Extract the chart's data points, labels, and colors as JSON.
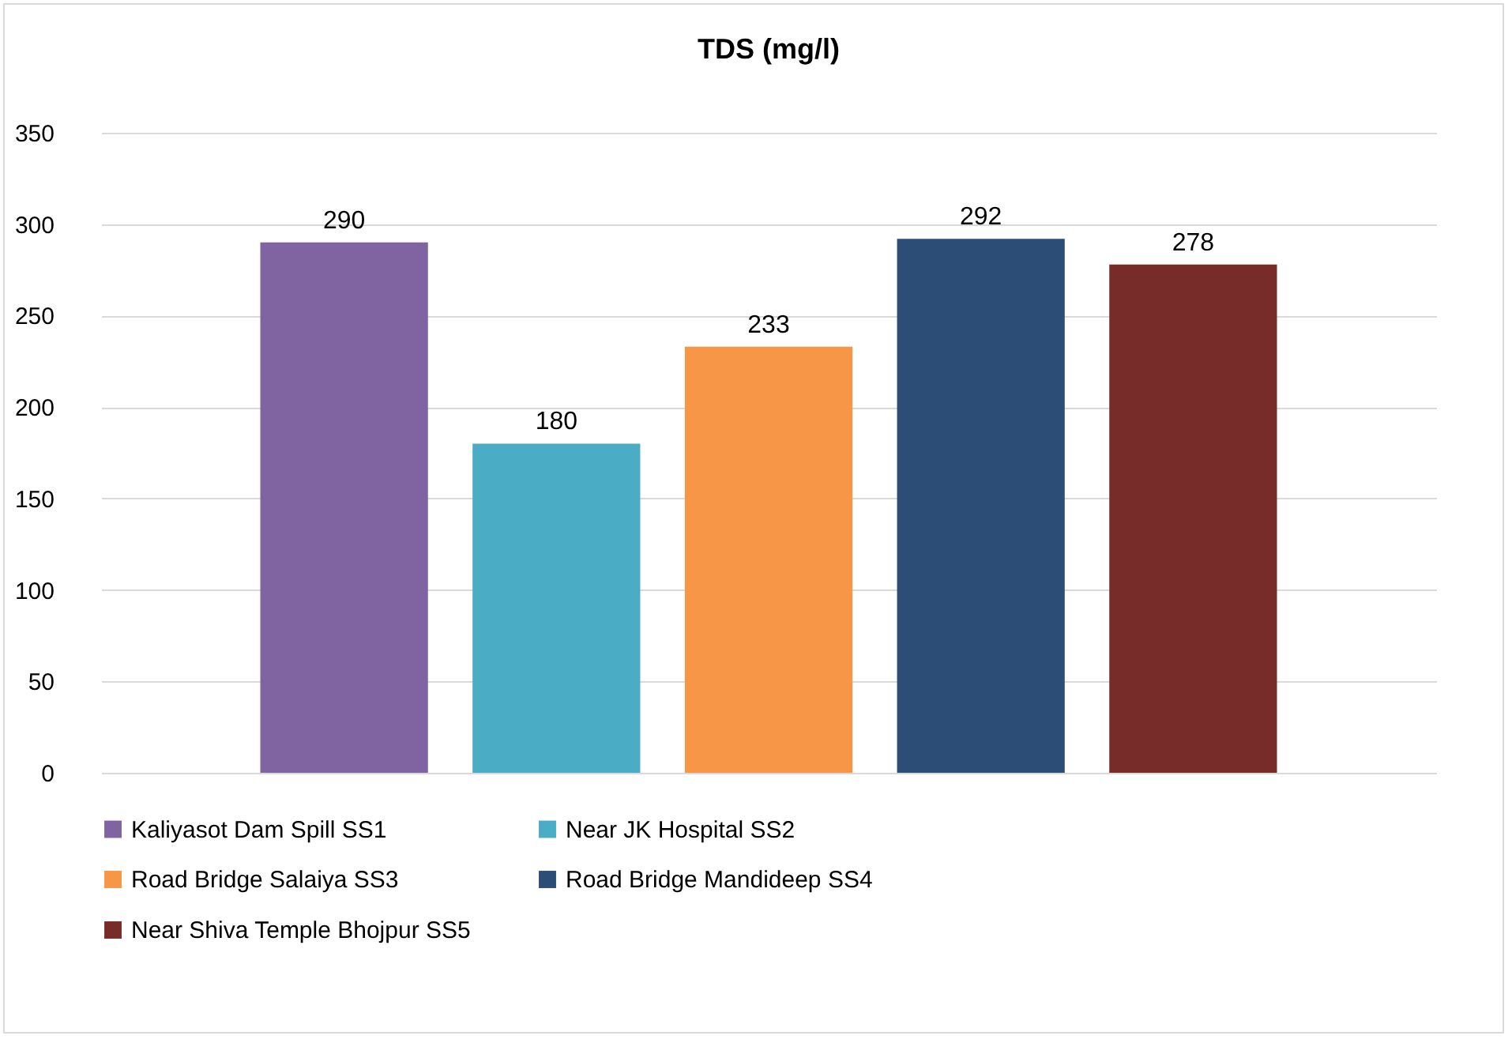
{
  "chart_data": {
    "type": "bar",
    "title": "TDS (mg/l)",
    "categories": [
      null
    ],
    "series": [
      {
        "name": "Kaliyasot Dam Spill SS1",
        "color": "#8064a2",
        "values": [
          290
        ]
      },
      {
        "name": "Near JK Hospital SS2",
        "color": "#4bacc6",
        "values": [
          180
        ]
      },
      {
        "name": "Road Bridge Salaiya SS3",
        "color": "#f79646",
        "values": [
          233
        ]
      },
      {
        "name": "Road Bridge Mandideep SS4",
        "color": "#2c4d75",
        "values": [
          292
        ]
      },
      {
        "name": "Near Shiva Temple Bhojpur SS5",
        "color": "#772c2a",
        "values": [
          278
        ]
      }
    ],
    "ylim": [
      0,
      350
    ],
    "yticks": [
      0,
      50,
      100,
      150,
      200,
      250,
      300,
      350
    ],
    "grid": "y",
    "legend": "bottom",
    "data_labels": true,
    "tick_labels": "y"
  }
}
